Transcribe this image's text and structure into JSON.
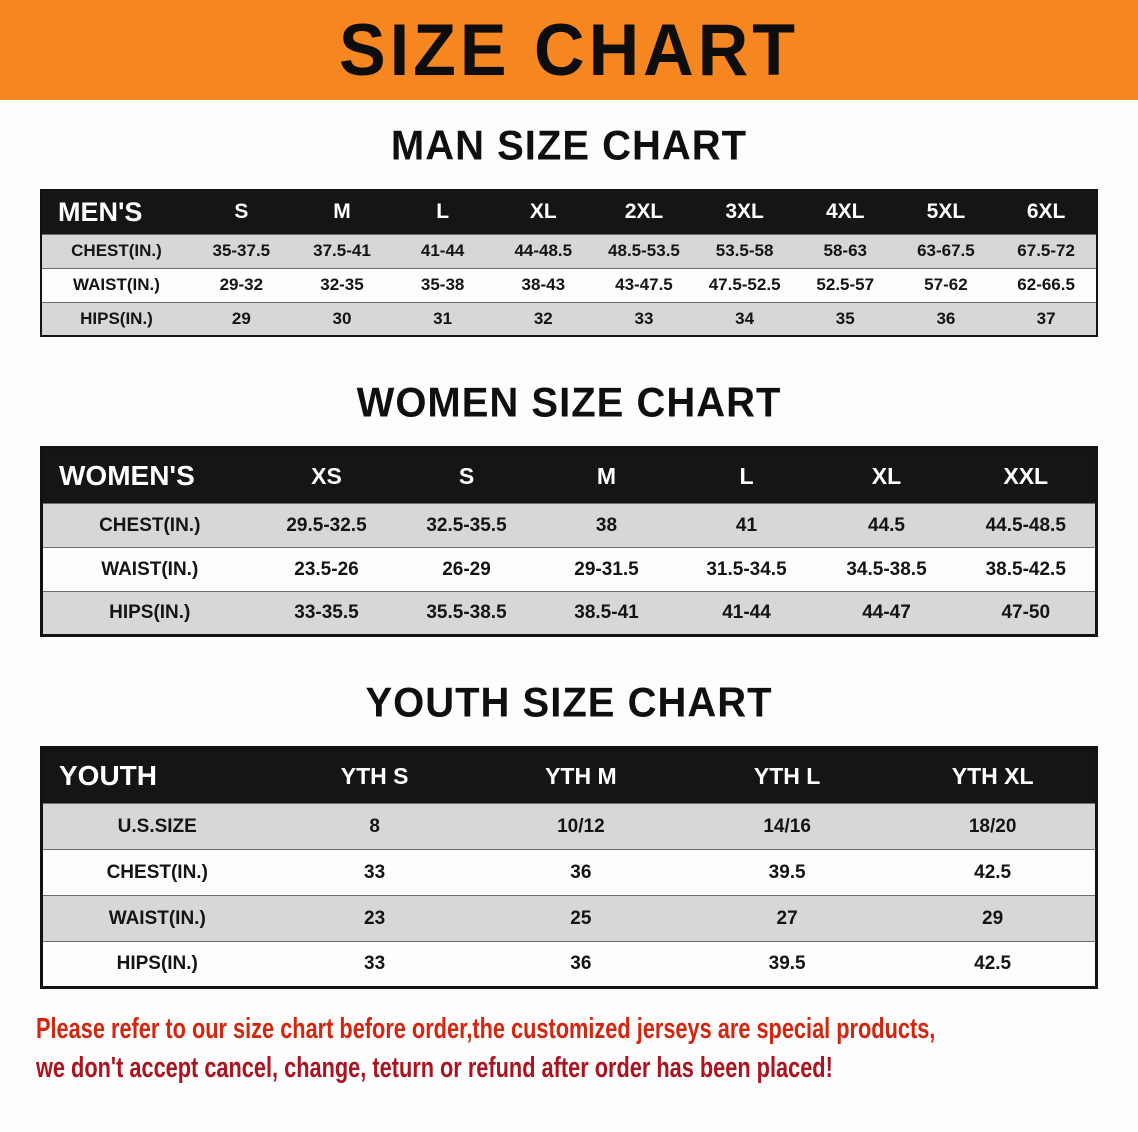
{
  "banner": {
    "title": "SIZE CHART"
  },
  "colors": {
    "banner_orange": "#f6861f",
    "table_header_black": "#151515",
    "row_stripe_gray": "#d7d7d7",
    "notice_red_line1": "#d3260f",
    "notice_red_line2": "#a91420"
  },
  "sections": [
    {
      "heading": "MAN SIZE CHART",
      "table": {
        "header": [
          "MEN'S",
          "S",
          "M",
          "L",
          "XL",
          "2XL",
          "3XL",
          "4XL",
          "5XL",
          "6XL"
        ],
        "rows": [
          [
            "CHEST(IN.)",
            "35-37.5",
            "37.5-41",
            "41-44",
            "44-48.5",
            "48.5-53.5",
            "53.5-58",
            "58-63",
            "63-67.5",
            "67.5-72"
          ],
          [
            "WAIST(IN.)",
            "29-32",
            "32-35",
            "35-38",
            "38-43",
            "43-47.5",
            "47.5-52.5",
            "52.5-57",
            "57-62",
            "62-66.5"
          ],
          [
            "HIPS(IN.)",
            "29",
            "30",
            "31",
            "32",
            "33",
            "34",
            "35",
            "36",
            "37"
          ]
        ]
      }
    },
    {
      "heading": "WOMEN SIZE CHART",
      "table": {
        "header": [
          "WOMEN'S",
          "XS",
          "S",
          "M",
          "L",
          "XL",
          "XXL"
        ],
        "rows": [
          [
            "CHEST(IN.)",
            "29.5-32.5",
            "32.5-35.5",
            "38",
            "41",
            "44.5",
            "44.5-48.5"
          ],
          [
            "WAIST(IN.)",
            "23.5-26",
            "26-29",
            "29-31.5",
            "31.5-34.5",
            "34.5-38.5",
            "38.5-42.5"
          ],
          [
            "HIPS(IN.)",
            "33-35.5",
            "35.5-38.5",
            "38.5-41",
            "41-44",
            "44-47",
            "47-50"
          ]
        ]
      }
    },
    {
      "heading": "YOUTH SIZE CHART",
      "table": {
        "header": [
          "YOUTH",
          "YTH S",
          "YTH M",
          "YTH L",
          "YTH XL"
        ],
        "rows": [
          [
            "U.S.SIZE",
            "8",
            "10/12",
            "14/16",
            "18/20"
          ],
          [
            "CHEST(IN.)",
            "33",
            "36",
            "39.5",
            "42.5"
          ],
          [
            "WAIST(IN.)",
            "23",
            "25",
            "27",
            "29"
          ],
          [
            "HIPS(IN.)",
            "33",
            "36",
            "39.5",
            "42.5"
          ]
        ]
      }
    }
  ],
  "footer": {
    "line1": "Please refer to our size chart before order,the customized jerseys are special products,",
    "line2": "we don't accept cancel, change, teturn or refund after order has been placed!"
  }
}
